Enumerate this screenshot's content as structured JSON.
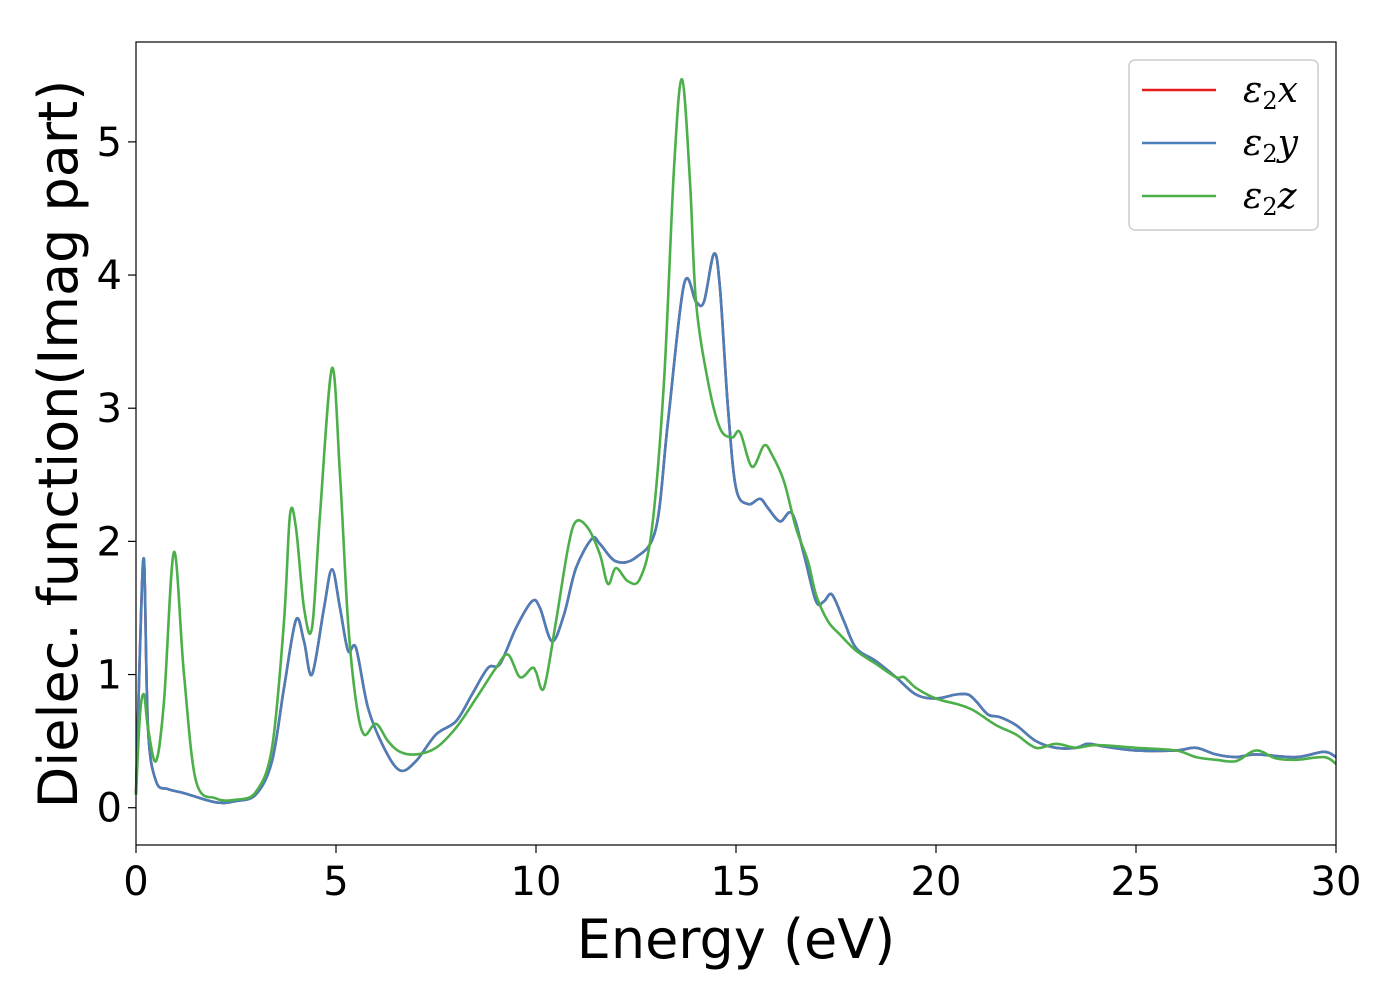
{
  "chart_data": {
    "type": "line",
    "xlabel": "Energy (eV)",
    "ylabel": "Dielec. function(Imag part)",
    "xlim": [
      0,
      30
    ],
    "ylim": [
      -0.28,
      5.75
    ],
    "xticks": [
      0,
      5,
      10,
      15,
      20,
      25,
      30
    ],
    "yticks": [
      0,
      1,
      2,
      3,
      4,
      5
    ],
    "grid": false,
    "legend_position": "top-right",
    "series": [
      {
        "name": "ε₂x",
        "legend_base": "ε",
        "legend_sub": "2",
        "legend_suffix": "x",
        "color": "#e41a1c",
        "x": [
          0,
          0.1,
          0.2,
          0.3,
          0.5,
          0.8,
          1.2,
          2.0,
          2.5,
          3.0,
          3.4,
          3.7,
          4.0,
          4.2,
          4.4,
          4.7,
          4.9,
          5.1,
          5.3,
          5.5,
          5.8,
          6.2,
          6.6,
          7.0,
          7.5,
          8.0,
          8.4,
          8.8,
          9.1,
          9.5,
          9.9,
          10.1,
          10.4,
          10.7,
          11.0,
          11.4,
          11.6,
          12.0,
          12.5,
          13.0,
          13.3,
          13.7,
          14.0,
          14.2,
          14.45,
          14.6,
          14.8,
          15.0,
          15.3,
          15.6,
          15.8,
          16.1,
          16.4,
          16.7,
          17.0,
          17.2,
          17.4,
          17.7,
          18.0,
          18.5,
          19.0,
          19.5,
          20.0,
          20.5,
          20.8,
          21.0,
          21.3,
          21.6,
          22.0,
          22.5,
          23.0,
          23.5,
          23.8,
          24.2,
          25.0,
          26.0,
          26.5,
          27.0,
          27.5,
          28.0,
          29.0,
          29.7,
          30.0
        ],
        "y": [
          0.1,
          1.2,
          1.86,
          0.6,
          0.2,
          0.14,
          0.11,
          0.04,
          0.05,
          0.1,
          0.35,
          0.9,
          1.41,
          1.25,
          1.0,
          1.5,
          1.79,
          1.5,
          1.18,
          1.2,
          0.75,
          0.45,
          0.28,
          0.35,
          0.55,
          0.65,
          0.85,
          1.05,
          1.08,
          1.35,
          1.55,
          1.5,
          1.25,
          1.45,
          1.8,
          2.02,
          1.98,
          1.85,
          1.88,
          2.1,
          2.9,
          3.93,
          3.8,
          3.8,
          4.16,
          3.9,
          3.0,
          2.4,
          2.28,
          2.32,
          2.25,
          2.15,
          2.21,
          1.9,
          1.55,
          1.55,
          1.6,
          1.4,
          1.2,
          1.1,
          0.98,
          0.85,
          0.82,
          0.85,
          0.85,
          0.8,
          0.7,
          0.68,
          0.62,
          0.5,
          0.45,
          0.45,
          0.48,
          0.46,
          0.43,
          0.43,
          0.45,
          0.4,
          0.38,
          0.4,
          0.38,
          0.42,
          0.38
        ]
      },
      {
        "name": "ε₂y",
        "legend_base": "ε",
        "legend_sub": "2",
        "legend_suffix": "y",
        "color": "#4a7fba",
        "x": [
          0,
          0.1,
          0.2,
          0.3,
          0.5,
          0.8,
          1.2,
          2.0,
          2.5,
          3.0,
          3.4,
          3.7,
          4.0,
          4.2,
          4.4,
          4.7,
          4.9,
          5.1,
          5.3,
          5.5,
          5.8,
          6.2,
          6.6,
          7.0,
          7.5,
          8.0,
          8.4,
          8.8,
          9.1,
          9.5,
          9.9,
          10.1,
          10.4,
          10.7,
          11.0,
          11.4,
          11.6,
          12.0,
          12.5,
          13.0,
          13.3,
          13.7,
          14.0,
          14.2,
          14.45,
          14.6,
          14.8,
          15.0,
          15.3,
          15.6,
          15.8,
          16.1,
          16.4,
          16.7,
          17.0,
          17.2,
          17.4,
          17.7,
          18.0,
          18.5,
          19.0,
          19.5,
          20.0,
          20.5,
          20.8,
          21.0,
          21.3,
          21.6,
          22.0,
          22.5,
          23.0,
          23.5,
          23.8,
          24.2,
          25.0,
          26.0,
          26.5,
          27.0,
          27.5,
          28.0,
          29.0,
          29.7,
          30.0
        ],
        "y": [
          0.1,
          1.2,
          1.86,
          0.6,
          0.2,
          0.14,
          0.11,
          0.04,
          0.05,
          0.1,
          0.35,
          0.9,
          1.41,
          1.25,
          1.0,
          1.5,
          1.79,
          1.5,
          1.18,
          1.2,
          0.75,
          0.45,
          0.28,
          0.35,
          0.55,
          0.65,
          0.85,
          1.05,
          1.08,
          1.35,
          1.55,
          1.5,
          1.25,
          1.45,
          1.8,
          2.02,
          1.98,
          1.85,
          1.88,
          2.1,
          2.9,
          3.93,
          3.8,
          3.8,
          4.16,
          3.9,
          3.0,
          2.4,
          2.28,
          2.32,
          2.25,
          2.15,
          2.21,
          1.9,
          1.55,
          1.55,
          1.6,
          1.4,
          1.2,
          1.1,
          0.98,
          0.85,
          0.82,
          0.85,
          0.85,
          0.8,
          0.7,
          0.68,
          0.62,
          0.5,
          0.45,
          0.45,
          0.48,
          0.46,
          0.43,
          0.43,
          0.45,
          0.4,
          0.38,
          0.4,
          0.38,
          0.42,
          0.38
        ]
      },
      {
        "name": "ε₂z",
        "legend_base": "ε",
        "legend_sub": "2",
        "legend_suffix": "z",
        "color": "#4daf4a",
        "x": [
          0,
          0.1,
          0.2,
          0.3,
          0.5,
          0.7,
          0.95,
          1.2,
          1.5,
          2.0,
          2.5,
          3.0,
          3.4,
          3.7,
          3.85,
          4.0,
          4.2,
          4.4,
          4.6,
          4.9,
          5.1,
          5.3,
          5.5,
          5.7,
          6.0,
          6.3,
          6.6,
          7.0,
          7.5,
          8.0,
          8.5,
          9.0,
          9.3,
          9.6,
          9.9,
          10.0,
          10.2,
          10.5,
          10.8,
          11.0,
          11.3,
          11.6,
          11.8,
          12.0,
          12.3,
          12.6,
          12.9,
          13.2,
          13.45,
          13.65,
          13.85,
          14.0,
          14.3,
          14.6,
          14.9,
          15.1,
          15.4,
          15.7,
          15.9,
          16.2,
          16.5,
          16.8,
          17.0,
          17.3,
          17.6,
          18.0,
          18.5,
          19.0,
          19.2,
          19.5,
          20.0,
          20.5,
          20.8,
          21.0,
          21.5,
          22.0,
          22.5,
          23.0,
          23.5,
          24.0,
          25.0,
          26.0,
          26.5,
          27.0,
          27.5,
          28.0,
          28.5,
          29.0,
          29.7,
          30.0
        ],
        "y": [
          0.1,
          0.7,
          0.85,
          0.6,
          0.35,
          0.8,
          1.92,
          1.0,
          0.2,
          0.07,
          0.06,
          0.12,
          0.45,
          1.4,
          2.2,
          2.1,
          1.5,
          1.35,
          2.2,
          3.3,
          2.5,
          1.4,
          0.8,
          0.55,
          0.63,
          0.5,
          0.42,
          0.4,
          0.45,
          0.6,
          0.82,
          1.05,
          1.15,
          0.98,
          1.05,
          1.02,
          0.9,
          1.4,
          1.95,
          2.15,
          2.1,
          1.9,
          1.68,
          1.8,
          1.7,
          1.72,
          2.1,
          3.2,
          4.8,
          5.47,
          4.7,
          3.8,
          3.2,
          2.85,
          2.78,
          2.82,
          2.56,
          2.72,
          2.65,
          2.45,
          2.1,
          1.85,
          1.6,
          1.4,
          1.3,
          1.18,
          1.08,
          0.98,
          0.98,
          0.9,
          0.82,
          0.78,
          0.75,
          0.72,
          0.62,
          0.55,
          0.45,
          0.48,
          0.45,
          0.47,
          0.45,
          0.43,
          0.38,
          0.36,
          0.35,
          0.43,
          0.37,
          0.36,
          0.38,
          0.33
        ]
      }
    ]
  }
}
